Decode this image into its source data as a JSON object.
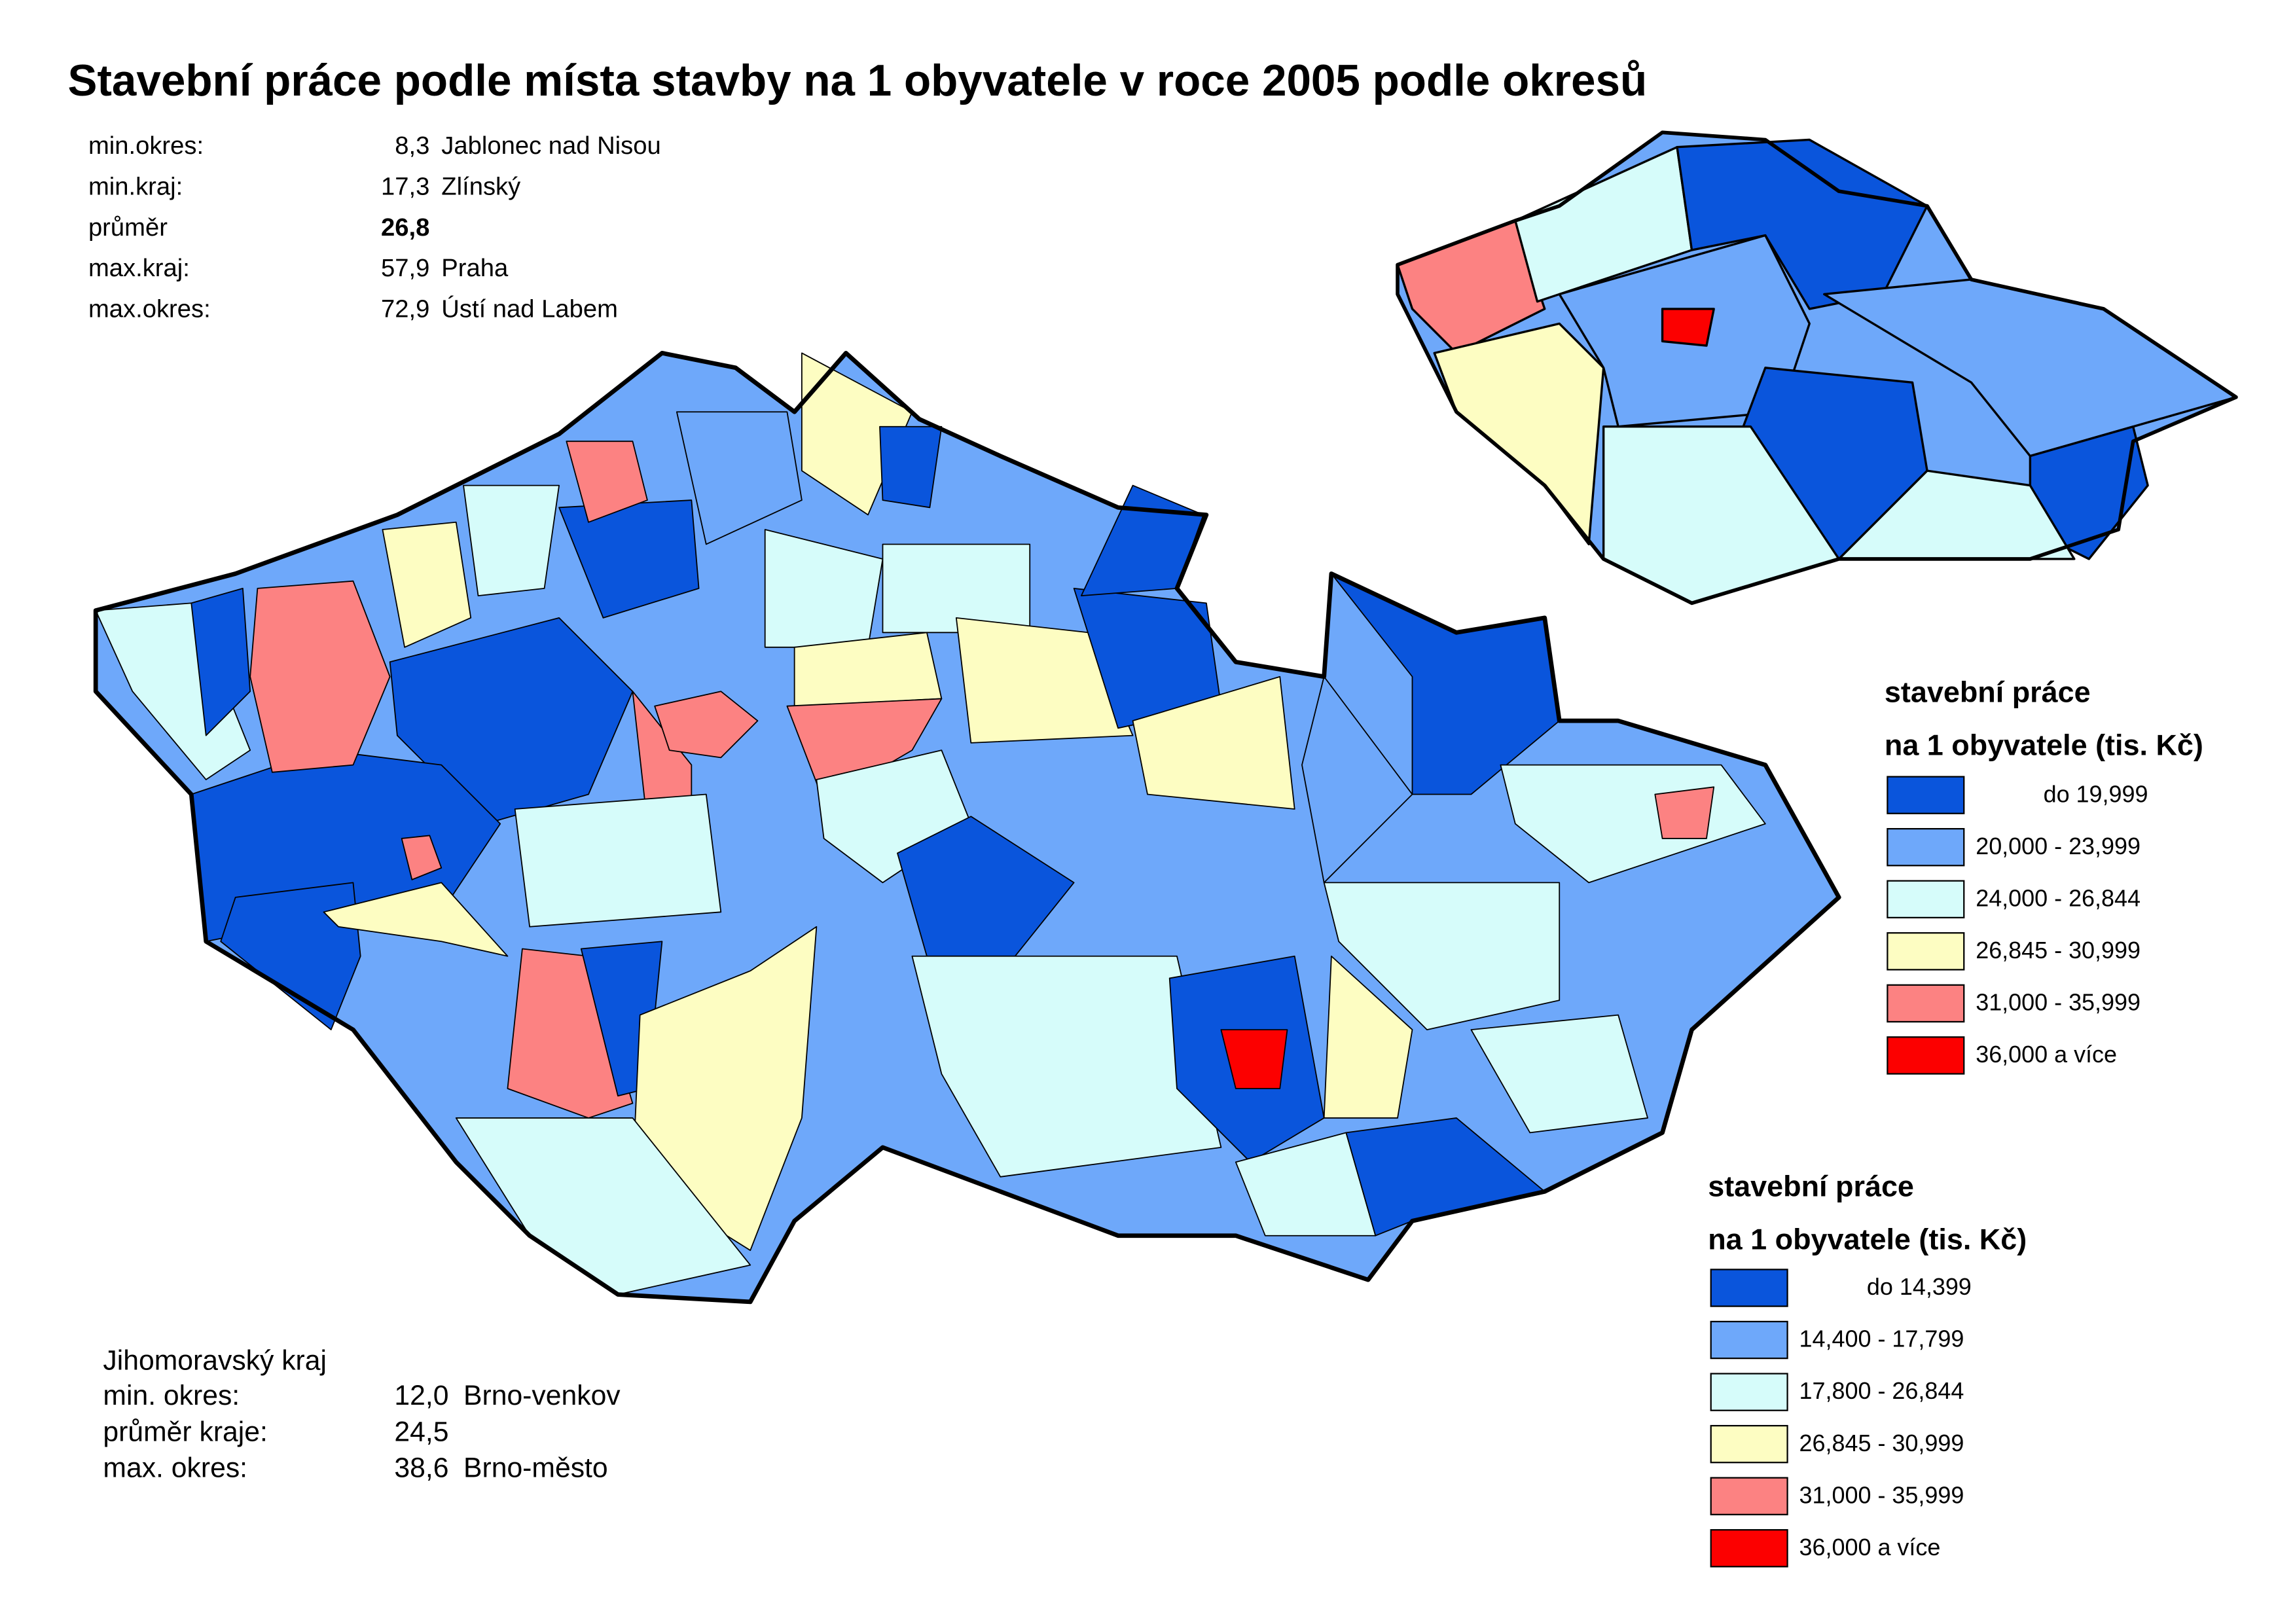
{
  "title": "Stavební práce podle místa stavby na 1 obyvatele v roce 2005 podle okresů",
  "stats": {
    "rows": [
      {
        "label": "min.okres:",
        "value": "8,3",
        "name": "Jablonec nad Nisou"
      },
      {
        "label": "min.kraj:",
        "value": "17,3",
        "name": "Zlínský"
      },
      {
        "label": "průměr",
        "value": "26,8"
      },
      {
        "label": "max.kraj:",
        "value": "57,9",
        "name": "Praha"
      },
      {
        "label": "max.okres:",
        "value": "72,9",
        "name": "Ústí nad Labem"
      }
    ]
  },
  "region_stats": {
    "title": "Jihomoravský kraj",
    "rows": [
      {
        "label": "min. okres:",
        "value": "12,0",
        "name": "Brno-venkov"
      },
      {
        "label": "průměr kraje:",
        "value": "24,5"
      },
      {
        "label": "max. okres:",
        "value": "38,6",
        "name": "Brno-město"
      }
    ]
  },
  "legend_kraje": {
    "title_lines": [
      "stavební práce",
      "na 1 obyvatele (tis. Kč)"
    ],
    "items": [
      {
        "label": "do 19,999",
        "color": "#0a55dc"
      },
      {
        "label": "20,000 - 23,999",
        "color": "#6ea8fa"
      },
      {
        "label": "24,000 - 26,844",
        "color": "#d6fcfa"
      },
      {
        "label": "26,845 - 30,999",
        "color": "#fdfdc2"
      },
      {
        "label": "31,000 - 35,999",
        "color": "#fc8282"
      },
      {
        "label": "36,000 a více",
        "color": "#fc0000"
      }
    ]
  },
  "legend_okresy": {
    "title_lines": [
      "stavební práce",
      "na 1 obyvatele (tis. Kč)"
    ],
    "items": [
      {
        "label": "do 14,399",
        "color": "#0a55dc"
      },
      {
        "label": "14,400 - 17,799",
        "color": "#6ea8fa"
      },
      {
        "label": "17,800 - 26,844",
        "color": "#d6fcfa"
      },
      {
        "label": "26,845 - 30,999",
        "color": "#fdfdc2"
      },
      {
        "label": "31,000 - 35,999",
        "color": "#fc8282"
      },
      {
        "label": "36,000 a více",
        "color": "#fc0000"
      }
    ]
  }
}
